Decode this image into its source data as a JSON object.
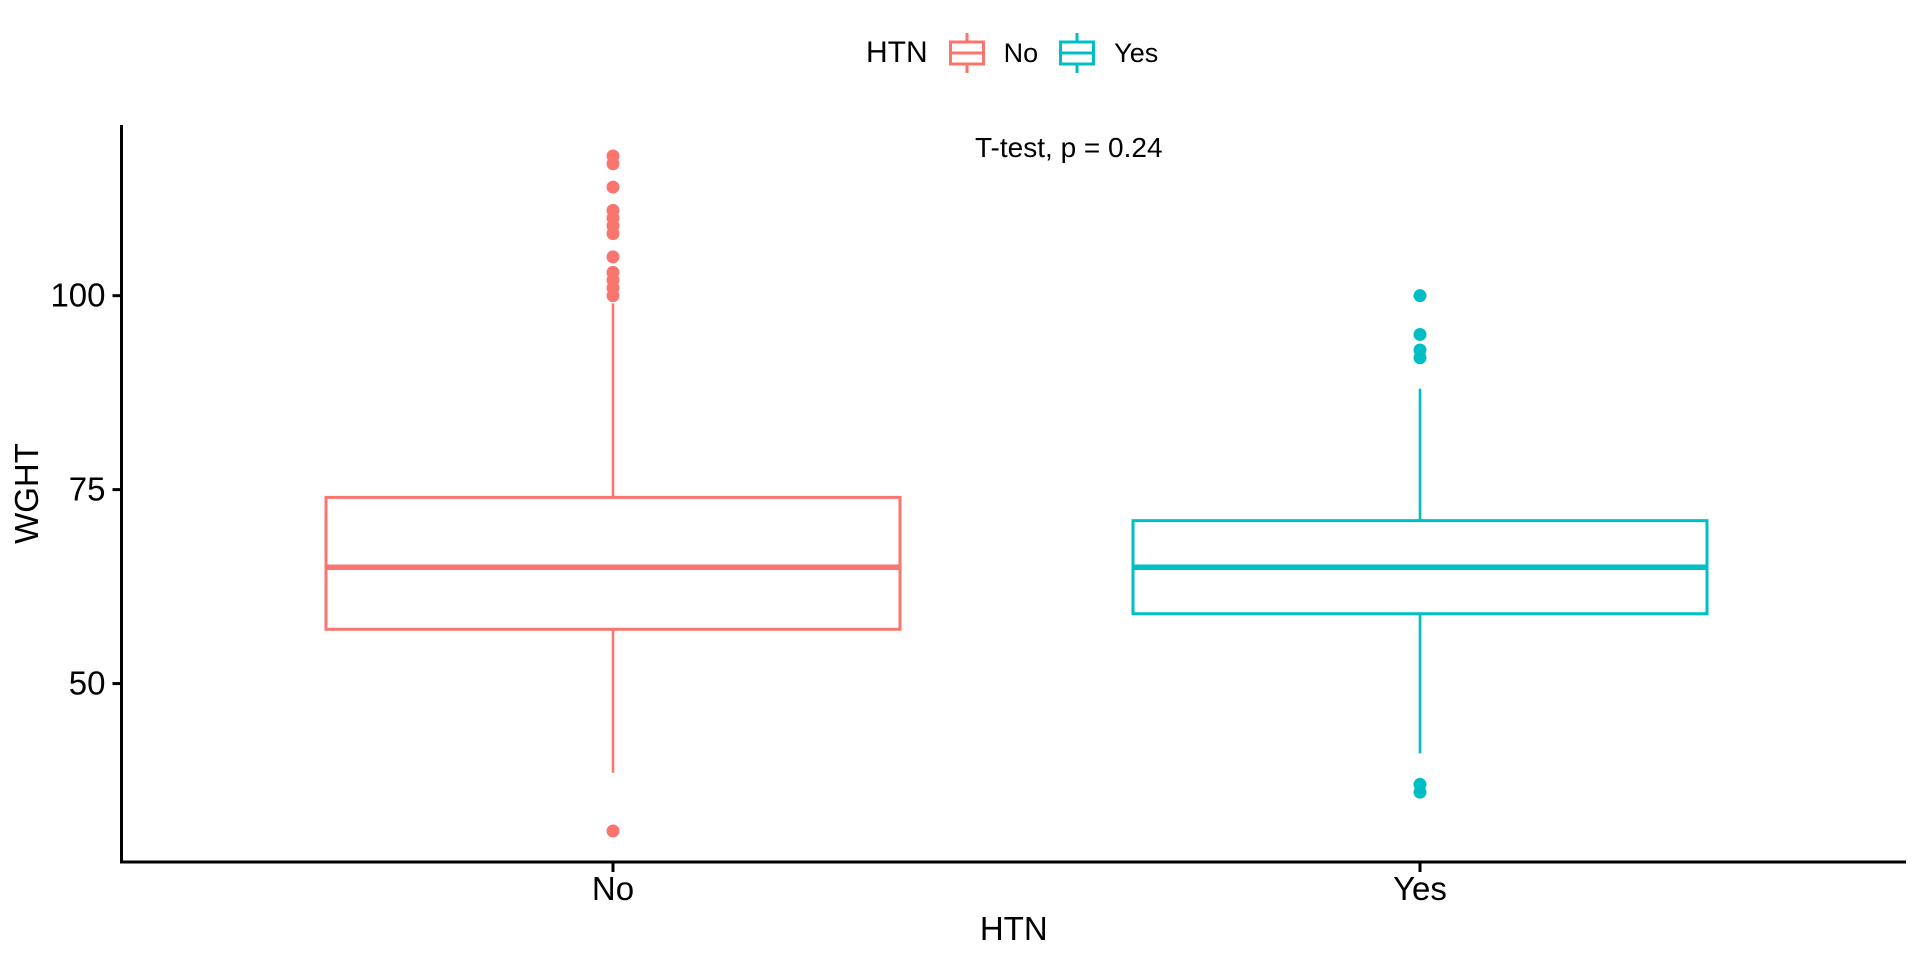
{
  "legend": {
    "title": "HTN",
    "items": [
      {
        "label": "No",
        "color": "#F8766D"
      },
      {
        "label": "Yes",
        "color": "#00BFC4"
      }
    ]
  },
  "chart_data": {
    "type": "boxplot",
    "title": "",
    "xlabel": "HTN",
    "ylabel": "WGHT",
    "categories": [
      "No",
      "Yes"
    ],
    "y_ticks": [
      50,
      75,
      100
    ],
    "ylim": [
      27,
      122
    ],
    "grid": false,
    "legend_position": "top",
    "annotation": "T-test, p = 0.24",
    "series": [
      {
        "name": "No",
        "color": "#F8766D",
        "q1": 57,
        "median": 65,
        "q3": 74,
        "whisker_low": 38.5,
        "whisker_high": 99,
        "outliers_low": [
          31
        ],
        "outliers_high": [
          100,
          101,
          102,
          103,
          105,
          108,
          109,
          110,
          111,
          114,
          117,
          118
        ]
      },
      {
        "name": "Yes",
        "color": "#00BFC4",
        "q1": 59,
        "median": 65,
        "q3": 71,
        "whisker_low": 41,
        "whisker_high": 88,
        "outliers_low": [
          36,
          37
        ],
        "outliers_high": [
          92,
          93,
          95,
          100
        ]
      }
    ]
  }
}
